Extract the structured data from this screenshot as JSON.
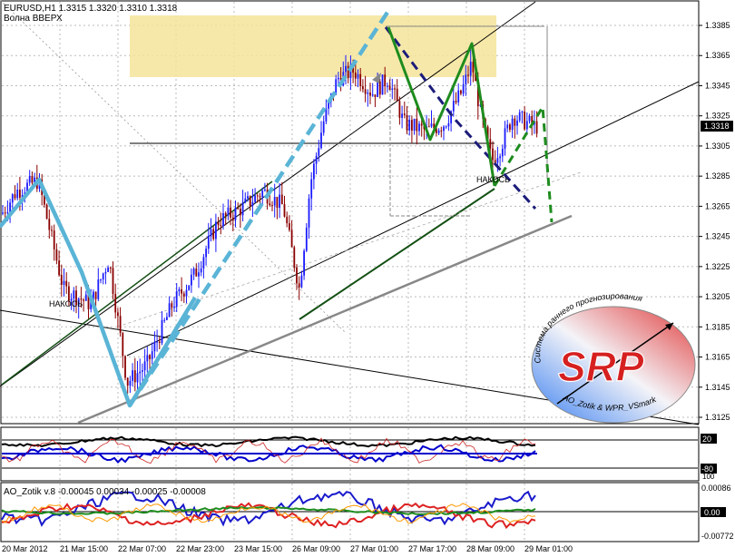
{
  "main_chart": {
    "symbol_line": "EURUSD,H1  1.3315 1.3320 1.3310 1.3318",
    "subtitle": "Волна ВВЕРХ",
    "last_price_label": "1.3318",
    "price_ticks": [
      "1.3385",
      "1.3365",
      "1.3345",
      "1.3325",
      "1.3305",
      "1.3285",
      "1.3265",
      "1.3245",
      "1.3225",
      "1.3205",
      "1.3185",
      "1.3165",
      "1.3145",
      "1.3125"
    ],
    "annotations": [
      "НАКОСЬ",
      "НАКОСЬ"
    ],
    "colors": {
      "bull": "#1a1aff",
      "bear": "#8b0000",
      "wave_blue": "#5ab4d6",
      "wave_navy": "#1c1c7a",
      "wave_green": "#1e8c1e",
      "zone": "#f5e49a"
    }
  },
  "chart_data": {
    "type": "candlestick",
    "x_ticks": [
      "20 Mar 2012",
      "21 Mar 15:00",
      "22 Mar 07:00",
      "22 Mar 23:00",
      "23 Mar 15:00",
      "26 Mar 09:00",
      "27 Mar 01:00",
      "27 Mar 17:00",
      "28 Mar 09:00",
      "29 Mar 01:00"
    ],
    "ylim": [
      1.3116,
      1.3399
    ]
  },
  "indicator1": {
    "ticks": [
      "20",
      "-80",
      "100"
    ]
  },
  "indicator2": {
    "label": "AO_Zotik v.8 -0.00045 0.00034 -0.00025 -0.00008",
    "ticks": [
      "0.00086",
      "0.00",
      "-0.00772"
    ]
  },
  "logo": {
    "arc_top": "Система раннего прогнозирования",
    "letters": "SRP",
    "arc_bottom": "AO_Zotik & WPR_VSmark"
  }
}
